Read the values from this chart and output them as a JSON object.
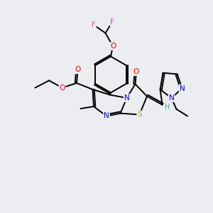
{
  "bg_color": "#ecedf1",
  "bond_color": "#000000",
  "atom_colors": {
    "N": "#0000cc",
    "O": "#ee0000",
    "S": "#bbaa00",
    "F": "#cc44bb",
    "H": "#44aaaa",
    "C": "#000000"
  },
  "figsize": [
    3.0,
    3.0
  ],
  "dpi": 100,
  "xlim": [
    0,
    10
  ],
  "ylim": [
    0,
    10
  ]
}
